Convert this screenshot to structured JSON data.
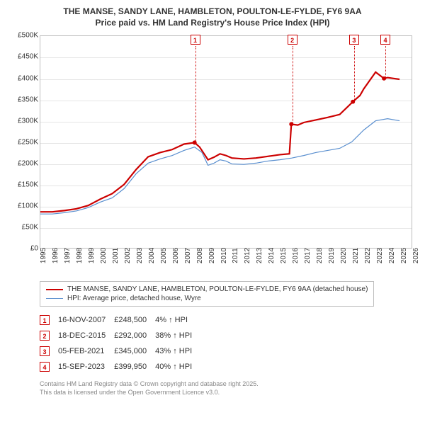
{
  "title_line1": "THE MANSE, SANDY LANE, HAMBLETON, POULTON-LE-FYLDE, FY6 9AA",
  "title_line2": "Price paid vs. HM Land Registry's House Price Index (HPI)",
  "chart": {
    "type": "line",
    "background_color": "#ffffff",
    "grid_color": "#e5e5e5",
    "axis_color": "#bdbdbd",
    "y": {
      "min": 0,
      "max": 500000,
      "step": 50000,
      "labels": [
        "£0",
        "£50K",
        "£100K",
        "£150K",
        "£200K",
        "£250K",
        "£300K",
        "£350K",
        "£400K",
        "£450K",
        "£500K"
      ]
    },
    "x": {
      "min": 1995,
      "max": 2026,
      "step": 1,
      "labels": [
        "1995",
        "1996",
        "1997",
        "1998",
        "1999",
        "2000",
        "2001",
        "2002",
        "2003",
        "2004",
        "2005",
        "2006",
        "2007",
        "2008",
        "2009",
        "2010",
        "2011",
        "2012",
        "2013",
        "2014",
        "2015",
        "2016",
        "2017",
        "2018",
        "2019",
        "2020",
        "2021",
        "2022",
        "2023",
        "2024",
        "2025",
        "2026"
      ]
    },
    "series": [
      {
        "name": "manse",
        "label": "THE MANSE, SANDY LANE, HAMBLETON, POULTON-LE-FYLDE, FY6 9AA (detached house)",
        "color": "#cc0000",
        "line_width": 2.2,
        "points": [
          [
            1995.0,
            85000
          ],
          [
            1996.0,
            85000
          ],
          [
            1997.0,
            88000
          ],
          [
            1998.0,
            92000
          ],
          [
            1999.0,
            100000
          ],
          [
            2000.0,
            115000
          ],
          [
            2001.0,
            128000
          ],
          [
            2002.0,
            150000
          ],
          [
            2003.0,
            185000
          ],
          [
            2004.0,
            215000
          ],
          [
            2005.0,
            225000
          ],
          [
            2006.0,
            232000
          ],
          [
            2007.0,
            245000
          ],
          [
            2007.88,
            248500
          ],
          [
            2008.3,
            238000
          ],
          [
            2009.0,
            208000
          ],
          [
            2009.5,
            214000
          ],
          [
            2010.0,
            222000
          ],
          [
            2010.5,
            218000
          ],
          [
            2011.0,
            212000
          ],
          [
            2012.0,
            210000
          ],
          [
            2013.0,
            212000
          ],
          [
            2014.0,
            216000
          ],
          [
            2015.0,
            220000
          ],
          [
            2015.8,
            222000
          ],
          [
            2015.96,
            292000
          ],
          [
            2016.5,
            290000
          ],
          [
            2017.0,
            296000
          ],
          [
            2018.0,
            302000
          ],
          [
            2019.0,
            308000
          ],
          [
            2020.0,
            315000
          ],
          [
            2021.1,
            345000
          ],
          [
            2021.7,
            360000
          ],
          [
            2022.0,
            375000
          ],
          [
            2022.5,
            395000
          ],
          [
            2023.0,
            415000
          ],
          [
            2023.7,
            399950
          ],
          [
            2024.0,
            402000
          ],
          [
            2024.5,
            400000
          ],
          [
            2025.0,
            398000
          ]
        ]
      },
      {
        "name": "hpi",
        "label": "HPI: Average price, detached house, Wyre",
        "color": "#5a8fcf",
        "line_width": 1.2,
        "points": [
          [
            1995.0,
            80000
          ],
          [
            1996.0,
            80000
          ],
          [
            1997.0,
            83000
          ],
          [
            1998.0,
            87000
          ],
          [
            1999.0,
            95000
          ],
          [
            2000.0,
            108000
          ],
          [
            2001.0,
            118000
          ],
          [
            2002.0,
            140000
          ],
          [
            2003.0,
            175000
          ],
          [
            2004.0,
            200000
          ],
          [
            2005.0,
            210000
          ],
          [
            2006.0,
            218000
          ],
          [
            2007.0,
            230000
          ],
          [
            2007.88,
            238000
          ],
          [
            2008.5,
            225000
          ],
          [
            2009.0,
            195000
          ],
          [
            2009.5,
            200000
          ],
          [
            2010.0,
            208000
          ],
          [
            2010.5,
            205000
          ],
          [
            2011.0,
            198000
          ],
          [
            2012.0,
            197000
          ],
          [
            2013.0,
            200000
          ],
          [
            2014.0,
            205000
          ],
          [
            2015.0,
            208000
          ],
          [
            2016.0,
            212000
          ],
          [
            2017.0,
            218000
          ],
          [
            2018.0,
            225000
          ],
          [
            2019.0,
            230000
          ],
          [
            2020.0,
            235000
          ],
          [
            2021.0,
            250000
          ],
          [
            2022.0,
            278000
          ],
          [
            2023.0,
            300000
          ],
          [
            2024.0,
            305000
          ],
          [
            2025.0,
            300000
          ]
        ]
      }
    ],
    "sale_markers": [
      {
        "n": "1",
        "x": 2007.88,
        "y": 248500
      },
      {
        "n": "2",
        "x": 2015.96,
        "y": 292000
      },
      {
        "n": "3",
        "x": 2021.1,
        "y": 345000
      },
      {
        "n": "4",
        "x": 2023.7,
        "y": 399950
      }
    ]
  },
  "legend": {
    "items": [
      {
        "color": "#cc0000",
        "width": 2.2,
        "label_key": "chart.series.0.label"
      },
      {
        "color": "#5a8fcf",
        "width": 1.2,
        "label_key": "chart.series.1.label"
      }
    ]
  },
  "sales": [
    {
      "n": "1",
      "date": "16-NOV-2007",
      "price": "£248,500",
      "delta": "4% ↑ HPI"
    },
    {
      "n": "2",
      "date": "18-DEC-2015",
      "price": "£292,000",
      "delta": "38% ↑ HPI"
    },
    {
      "n": "3",
      "date": "05-FEB-2021",
      "price": "£345,000",
      "delta": "43% ↑ HPI"
    },
    {
      "n": "4",
      "date": "15-SEP-2023",
      "price": "£399,950",
      "delta": "40% ↑ HPI"
    }
  ],
  "footnote_line1": "Contains HM Land Registry data © Crown copyright and database right 2025.",
  "footnote_line2": "This data is licensed under the Open Government Licence v3.0."
}
